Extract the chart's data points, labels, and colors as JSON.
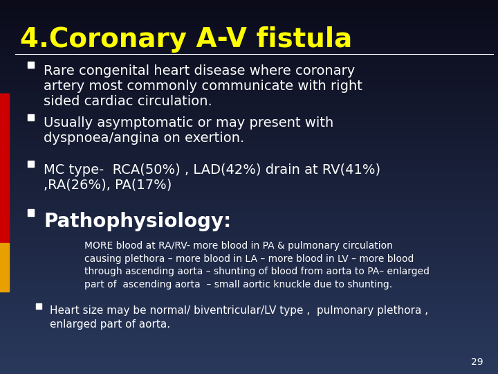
{
  "title": "4.Coronary A-V fistula",
  "title_color": "#FFFF00",
  "title_fontsize": 28,
  "bullet_color": "#ffffff",
  "left_bar_colors": [
    "#cc0000",
    "#e8a000"
  ],
  "bullets": [
    "Rare congenital heart disease where coronary\nartery most commonly communicate with right\nsided cardiac circulation.",
    "Usually asymptomatic or may present with\ndyspnoea/angina on exertion.",
    "MC type-  RCA(50%) , LAD(42%) drain at RV(41%)\n,RA(26%), PA(17%)",
    "Pathophysiology:"
  ],
  "bullet_fontsizes": [
    14,
    14,
    14,
    20
  ],
  "bullet_bold": [
    false,
    false,
    false,
    true
  ],
  "indent_text": "MORE blood at RA/RV- more blood in PA & pulmonary circulation\ncausing plethora – more blood in LA – more blood in LV – more blood\nthrough ascending aorta – shunting of blood from aorta to PA– enlarged\npart of  ascending aorta  – small aortic knuckle due to shunting.",
  "indent_text_fontsize": 10,
  "sub_bullet_text": "Heart size may be normal/ biventricular/LV type ,  pulmonary plethora ,\nenlarged part of aorta.",
  "sub_bullet_fontsize": 11,
  "page_number": "29",
  "page_number_fontsize": 10
}
